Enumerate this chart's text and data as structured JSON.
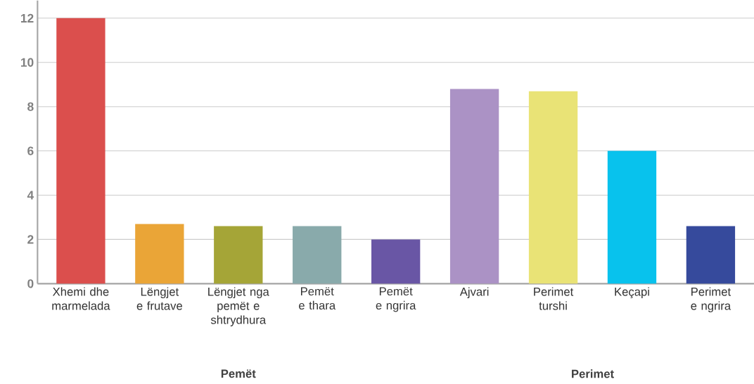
{
  "chart_data": {
    "type": "bar",
    "categories": [
      "Xhemi dhe marmelada",
      "Lëngjet e frutave",
      "Lëngjet nga pemët e shtrydhura",
      "Pemët e thara",
      "Pemët e ngrira",
      "Ajvari",
      "Perimet turshi",
      "Keçapi",
      "Perimet e ngrira"
    ],
    "values": [
      12,
      2.7,
      2.6,
      2.6,
      2,
      8.8,
      8.7,
      6,
      2.6
    ],
    "colors": [
      "#db4f4d",
      "#eaa537",
      "#a5a537",
      "#89aaab",
      "#6956a5",
      "#ab92c5",
      "#e9e376",
      "#08c2ed",
      "#364a9c"
    ],
    "ylim": [
      0,
      12.8
    ],
    "yticks": [
      0,
      2,
      4,
      6,
      8,
      10,
      12
    ],
    "grid": "y",
    "annotations": [
      "Pemët",
      "Perimet"
    ]
  }
}
